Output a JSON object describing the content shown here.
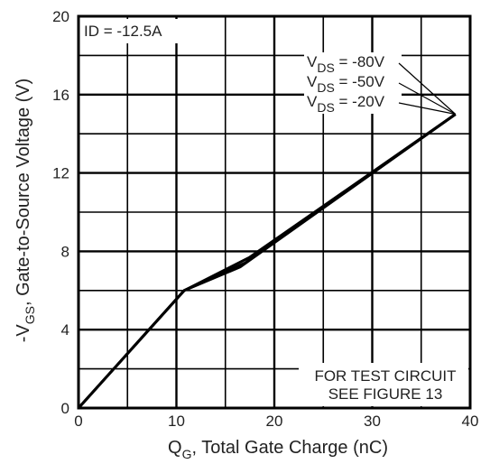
{
  "chart_data": {
    "type": "line",
    "title": "",
    "xlabel_main": "Q",
    "xlabel_sub": "G",
    "xlabel_rest": ", Total Gate Charge (nC)",
    "ylabel_prefix": "-V",
    "ylabel_sub": "GS",
    "ylabel_rest": ", Gate-to-Source Voltage (V)",
    "xlim": [
      0,
      40
    ],
    "ylim": [
      0,
      20
    ],
    "x_ticks": [
      0,
      10,
      20,
      30,
      40
    ],
    "y_ticks": [
      0,
      4,
      8,
      12,
      16,
      20
    ],
    "grid_x_step": 5,
    "grid_y_step": 2,
    "grid": true,
    "condition_label": "ID = -12.5A",
    "test_note": [
      "FOR TEST CIRCUIT",
      "SEE FIGURE 13"
    ],
    "series": [
      {
        "name": "V_DS = -80V",
        "label_main": "V",
        "label_sub": "DS",
        "label_rest": " = -80V",
        "x": [
          0,
          10.8,
          16.5,
          38.5
        ],
        "y": [
          0,
          6.0,
          7.2,
          15.0
        ]
      },
      {
        "name": "V_DS = -50V",
        "label_main": "V",
        "label_sub": "DS",
        "label_rest": " = -50V",
        "x": [
          0,
          10.8,
          17.0,
          38.5
        ],
        "y": [
          0,
          6.0,
          7.4,
          15.0
        ]
      },
      {
        "name": "V_DS = -20V",
        "label_main": "V",
        "label_sub": "DS",
        "label_rest": " = -20V",
        "x": [
          0,
          10.8,
          17.5,
          38.5
        ],
        "y": [
          0,
          6.0,
          7.7,
          15.0
        ]
      }
    ],
    "line_color": "#000000"
  }
}
